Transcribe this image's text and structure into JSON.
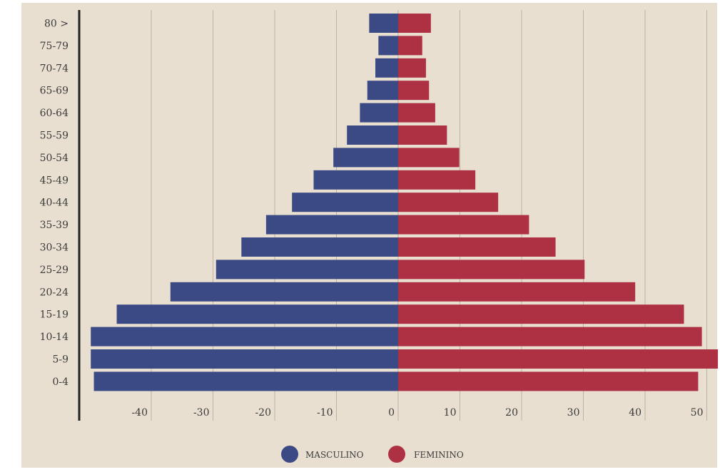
{
  "chart_data": {
    "type": "bar",
    "orientation": "horizontal",
    "subtype": "population-pyramid",
    "title": "",
    "xlabel": "",
    "ylabel": "",
    "categories": [
      "80 >",
      "75-79",
      "70-74",
      "65-69",
      "60-64",
      "55-59",
      "50-54",
      "45-49",
      "40-44",
      "35-39",
      "30-34",
      "25-29",
      "20-24",
      "15-19",
      "10-14",
      "5-9",
      "0-4"
    ],
    "series": [
      {
        "name": "MASCULINO",
        "color": "#3b4a85",
        "values": [
          -4.7,
          -3.2,
          -3.7,
          -5.0,
          -6.2,
          -8.3,
          -10.5,
          -13.7,
          -17.2,
          -21.4,
          -25.4,
          -29.5,
          -36.9,
          -45.6,
          -49.8,
          -49.8,
          -49.3
        ]
      },
      {
        "name": "FEMININO",
        "color": "#ad3142",
        "values": [
          5.3,
          3.9,
          4.5,
          5.0,
          6.0,
          7.9,
          9.9,
          12.5,
          16.2,
          21.2,
          25.5,
          30.2,
          38.4,
          46.3,
          49.2,
          51.8,
          48.6
        ]
      }
    ],
    "x_ticks": [
      -40,
      -30,
      -20,
      -10,
      0,
      10,
      20,
      30,
      40,
      50
    ],
    "x_tick_labels": [
      "-40",
      "-30",
      "-20",
      "-10",
      "0",
      "10",
      "20",
      "30",
      "40",
      "50"
    ],
    "xlim": [
      -50,
      51.5
    ],
    "grid": "vertical",
    "legend_position": "bottom-center",
    "background_color": "#e8dfd1"
  }
}
